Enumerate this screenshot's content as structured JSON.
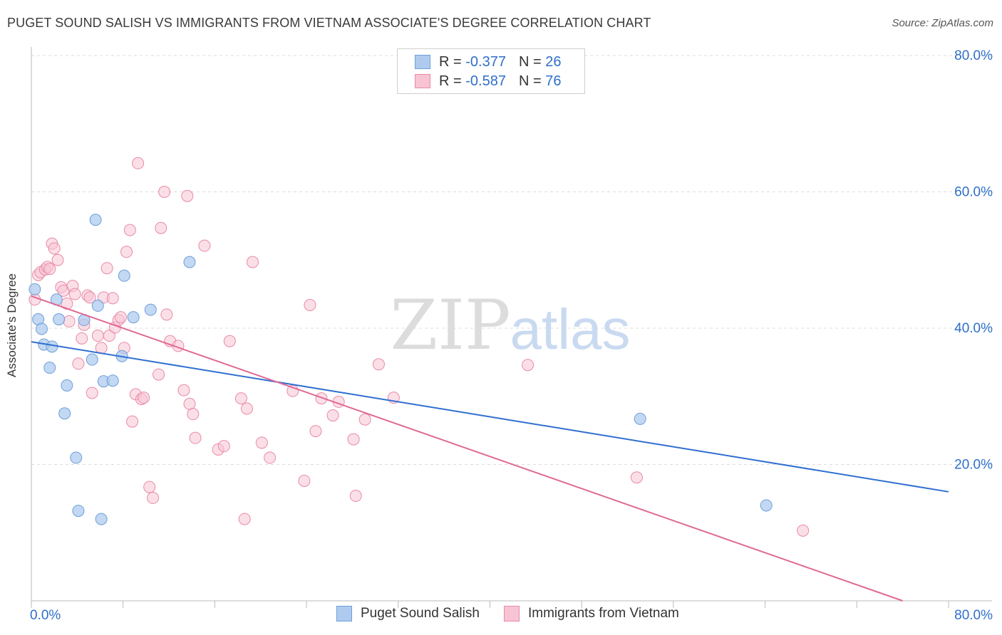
{
  "header": {
    "title": "PUGET SOUND SALISH VS IMMIGRANTS FROM VIETNAM ASSOCIATE'S DEGREE CORRELATION CHART",
    "source": "Source: ZipAtlas.com"
  },
  "watermark": {
    "zip": "ZIP",
    "atlas": "atlas"
  },
  "legend": {
    "series1": {
      "r_label": "R =",
      "r_value": "-0.377",
      "n_label": "N =",
      "n_value": "26"
    },
    "series2": {
      "r_label": "R =",
      "r_value": "-0.587",
      "n_label": "N =",
      "n_value": "76"
    }
  },
  "bottom_legend": {
    "series1": "Puget Sound Salish",
    "series2": "Immigrants from Vietnam"
  },
  "colors": {
    "series1_fill": "#aecbef",
    "series1_stroke": "#6f9fd8",
    "series1_line": "#2f6fd0",
    "series2_fill": "#f8c4d4",
    "series2_stroke": "#e88aa8",
    "series2_line": "#e06a94",
    "tick_text": "#2f6fc9",
    "grid": "#dcdcdc"
  },
  "chart_data": {
    "type": "scatter",
    "title": "PUGET SOUND SALISH VS IMMIGRANTS FROM VIETNAM ASSOCIATE'S DEGREE CORRELATION CHART",
    "xlabel": "",
    "ylabel": "Associate's Degree",
    "xlim": [
      0,
      80
    ],
    "ylim": [
      0,
      80
    ],
    "x_tick_labels": [
      "0.0%",
      "80.0%"
    ],
    "y_tick_labels": [
      "20.0%",
      "40.0%",
      "60.0%",
      "80.0%"
    ],
    "y_ticks": [
      20,
      40,
      60,
      80
    ],
    "grid": true,
    "legend_position": "top-center",
    "series": [
      {
        "name": "Puget Sound Salish",
        "r": -0.377,
        "n": 26,
        "trend": [
          [
            0,
            38.0
          ],
          [
            80,
            16.0
          ]
        ],
        "points": [
          [
            0.3,
            45.7
          ],
          [
            0.6,
            41.3
          ],
          [
            0.9,
            39.9
          ],
          [
            1.1,
            37.6
          ],
          [
            1.6,
            34.2
          ],
          [
            1.8,
            37.3
          ],
          [
            2.2,
            44.2
          ],
          [
            2.4,
            41.3
          ],
          [
            2.9,
            27.5
          ],
          [
            3.1,
            31.6
          ],
          [
            3.9,
            21.0
          ],
          [
            4.1,
            13.2
          ],
          [
            4.6,
            41.2
          ],
          [
            5.3,
            35.4
          ],
          [
            5.6,
            55.9
          ],
          [
            5.8,
            43.3
          ],
          [
            6.1,
            12.0
          ],
          [
            6.3,
            32.2
          ],
          [
            7.1,
            32.3
          ],
          [
            7.9,
            35.9
          ],
          [
            8.1,
            47.7
          ],
          [
            8.9,
            41.6
          ],
          [
            10.4,
            42.7
          ],
          [
            13.8,
            49.7
          ],
          [
            53.1,
            26.7
          ],
          [
            64.1,
            14.0
          ]
        ]
      },
      {
        "name": "Immigrants from Vietnam",
        "r": -0.587,
        "n": 76,
        "trend": [
          [
            0,
            44.7
          ],
          [
            76,
            0
          ]
        ],
        "points": [
          [
            0.3,
            44.2
          ],
          [
            0.6,
            47.8
          ],
          [
            0.8,
            48.2
          ],
          [
            1.2,
            48.6
          ],
          [
            1.4,
            49.0
          ],
          [
            1.6,
            48.7
          ],
          [
            1.8,
            52.4
          ],
          [
            2.0,
            51.7
          ],
          [
            2.3,
            50.0
          ],
          [
            2.6,
            46.0
          ],
          [
            2.8,
            45.5
          ],
          [
            3.1,
            43.6
          ],
          [
            3.3,
            41.0
          ],
          [
            3.6,
            46.2
          ],
          [
            3.8,
            45.0
          ],
          [
            4.1,
            34.8
          ],
          [
            4.4,
            38.5
          ],
          [
            4.6,
            40.5
          ],
          [
            4.9,
            44.8
          ],
          [
            5.1,
            44.5
          ],
          [
            5.3,
            30.5
          ],
          [
            5.8,
            38.9
          ],
          [
            6.1,
            37.1
          ],
          [
            6.3,
            44.5
          ],
          [
            6.6,
            48.8
          ],
          [
            6.8,
            38.9
          ],
          [
            7.1,
            44.4
          ],
          [
            7.3,
            40.1
          ],
          [
            7.6,
            41.2
          ],
          [
            7.8,
            41.6
          ],
          [
            8.1,
            37.1
          ],
          [
            8.3,
            51.2
          ],
          [
            8.6,
            54.4
          ],
          [
            8.8,
            26.3
          ],
          [
            9.1,
            30.3
          ],
          [
            9.3,
            64.2
          ],
          [
            9.6,
            29.6
          ],
          [
            9.8,
            29.8
          ],
          [
            10.3,
            16.7
          ],
          [
            10.6,
            15.1
          ],
          [
            11.1,
            33.2
          ],
          [
            11.3,
            54.7
          ],
          [
            11.6,
            60.0
          ],
          [
            11.8,
            42.0
          ],
          [
            12.1,
            38.1
          ],
          [
            12.8,
            37.4
          ],
          [
            13.3,
            30.9
          ],
          [
            13.6,
            59.4
          ],
          [
            13.8,
            28.9
          ],
          [
            14.1,
            27.4
          ],
          [
            14.3,
            23.9
          ],
          [
            15.1,
            52.1
          ],
          [
            16.3,
            22.2
          ],
          [
            16.8,
            22.7
          ],
          [
            17.3,
            38.1
          ],
          [
            18.3,
            29.7
          ],
          [
            18.6,
            12.0
          ],
          [
            18.8,
            28.2
          ],
          [
            19.3,
            49.7
          ],
          [
            20.1,
            23.2
          ],
          [
            20.8,
            21.0
          ],
          [
            22.8,
            30.8
          ],
          [
            23.8,
            17.6
          ],
          [
            24.3,
            43.4
          ],
          [
            24.8,
            24.9
          ],
          [
            25.3,
            29.7
          ],
          [
            26.3,
            27.2
          ],
          [
            26.8,
            29.2
          ],
          [
            28.1,
            23.7
          ],
          [
            28.3,
            15.4
          ],
          [
            29.1,
            26.6
          ],
          [
            30.3,
            34.7
          ],
          [
            31.6,
            29.8
          ],
          [
            43.3,
            34.6
          ],
          [
            52.8,
            18.1
          ],
          [
            67.3,
            10.3
          ]
        ]
      }
    ]
  }
}
